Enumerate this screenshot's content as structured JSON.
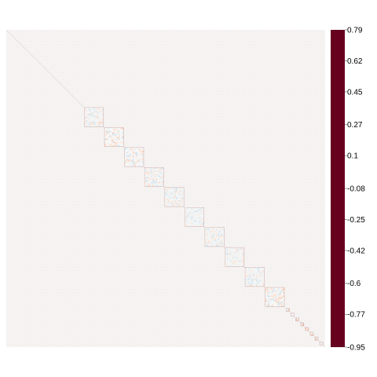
{
  "chart_data": {
    "type": "heatmap",
    "title": "",
    "xlabel": "",
    "ylabel": "",
    "value_range": [
      -0.95,
      0.79
    ],
    "diagonal_value": 0.79,
    "background_value": 0.0,
    "colorbar": {
      "ticks": [
        0.79,
        0.62,
        0.45,
        0.27,
        0.1,
        -0.08,
        -0.25,
        -0.42,
        -0.6,
        -0.77,
        -0.95
      ],
      "tick_labels": [
        "0.79",
        "0.62",
        "0.45",
        "0.27",
        "0.1",
        "-0.08",
        "-0.25",
        "-0.42",
        "-0.6",
        "-0.77",
        "-0.95"
      ],
      "colors": [
        "#67001f",
        "#b2182b",
        "#d6604d",
        "#f4a582",
        "#fddbc7",
        "#f7f7f7",
        "#d1e5f0",
        "#92c5de",
        "#4393c3",
        "#2166ac",
        "#053061"
      ]
    },
    "blocks": [
      {
        "start": 0.245,
        "end": 0.305,
        "mean_value": -0.18
      },
      {
        "start": 0.308,
        "end": 0.368,
        "mean_value": -0.22
      },
      {
        "start": 0.371,
        "end": 0.431,
        "mean_value": -0.2
      },
      {
        "start": 0.434,
        "end": 0.494,
        "mean_value": -0.18
      },
      {
        "start": 0.497,
        "end": 0.557,
        "mean_value": -0.16
      },
      {
        "start": 0.56,
        "end": 0.62,
        "mean_value": -0.16
      },
      {
        "start": 0.623,
        "end": 0.683,
        "mean_value": -0.16
      },
      {
        "start": 0.686,
        "end": 0.746,
        "mean_value": -0.16
      },
      {
        "start": 0.749,
        "end": 0.809,
        "mean_value": -0.16
      },
      {
        "start": 0.812,
        "end": 0.872,
        "mean_value": -0.22
      }
    ],
    "small_blocks": [
      {
        "start": 0.878,
        "end": 0.888,
        "mean_value": -0.3
      },
      {
        "start": 0.893,
        "end": 0.903,
        "mean_value": -0.3
      },
      {
        "start": 0.908,
        "end": 0.918,
        "mean_value": -0.3
      },
      {
        "start": 0.923,
        "end": 0.933,
        "mean_value": -0.3
      },
      {
        "start": 0.938,
        "end": 0.948,
        "mean_value": -0.3
      },
      {
        "start": 0.953,
        "end": 0.963,
        "mean_value": -0.3
      },
      {
        "start": 0.968,
        "end": 0.978,
        "mean_value": -0.3
      },
      {
        "start": 0.983,
        "end": 0.993,
        "mean_value": -0.3
      }
    ]
  }
}
